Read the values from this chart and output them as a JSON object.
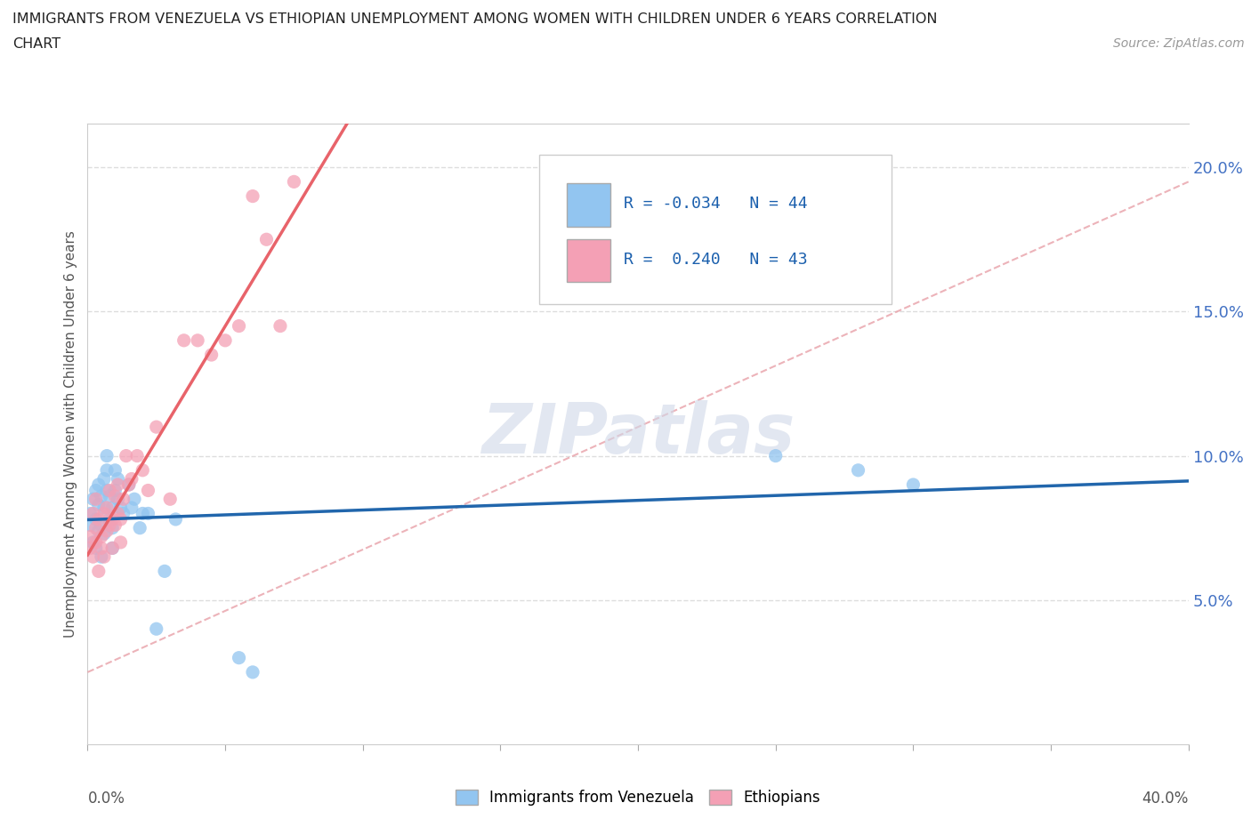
{
  "title_line1": "IMMIGRANTS FROM VENEZUELA VS ETHIOPIAN UNEMPLOYMENT AMONG WOMEN WITH CHILDREN UNDER 6 YEARS CORRELATION",
  "title_line2": "CHART",
  "source": "Source: ZipAtlas.com",
  "ylabel": "Unemployment Among Women with Children Under 6 years",
  "watermark": "ZIPatlas",
  "legend_label1": "Immigrants from Venezuela",
  "legend_label2": "Ethiopians",
  "R1": -0.034,
  "N1": 44,
  "R2": 0.24,
  "N2": 43,
  "color1": "#92C5F0",
  "color2": "#F4A0B5",
  "trendline1_color": "#2166AC",
  "trendline2_color": "#E8636A",
  "trendline_ref_color": "#D0A0A8",
  "venezuela_x": [
    0.001,
    0.001,
    0.002,
    0.002,
    0.003,
    0.003,
    0.003,
    0.004,
    0.004,
    0.004,
    0.005,
    0.005,
    0.005,
    0.006,
    0.006,
    0.006,
    0.007,
    0.007,
    0.007,
    0.008,
    0.008,
    0.009,
    0.009,
    0.009,
    0.01,
    0.01,
    0.011,
    0.011,
    0.012,
    0.013,
    0.015,
    0.016,
    0.017,
    0.019,
    0.02,
    0.022,
    0.025,
    0.028,
    0.032,
    0.055,
    0.06,
    0.25,
    0.28,
    0.3
  ],
  "venezuela_y": [
    0.08,
    0.076,
    0.085,
    0.07,
    0.088,
    0.078,
    0.068,
    0.083,
    0.074,
    0.09,
    0.076,
    0.065,
    0.086,
    0.073,
    0.082,
    0.092,
    0.095,
    0.1,
    0.088,
    0.086,
    0.078,
    0.082,
    0.075,
    0.068,
    0.095,
    0.088,
    0.092,
    0.085,
    0.082,
    0.08,
    0.09,
    0.082,
    0.085,
    0.075,
    0.08,
    0.08,
    0.04,
    0.06,
    0.078,
    0.03,
    0.025,
    0.1,
    0.095,
    0.09
  ],
  "ethiopian_x": [
    0.001,
    0.001,
    0.002,
    0.002,
    0.003,
    0.003,
    0.003,
    0.004,
    0.004,
    0.005,
    0.005,
    0.006,
    0.006,
    0.007,
    0.007,
    0.008,
    0.008,
    0.009,
    0.009,
    0.01,
    0.01,
    0.011,
    0.011,
    0.012,
    0.012,
    0.013,
    0.014,
    0.015,
    0.016,
    0.018,
    0.02,
    0.022,
    0.025,
    0.03,
    0.035,
    0.04,
    0.045,
    0.05,
    0.055,
    0.06,
    0.065,
    0.07,
    0.075
  ],
  "ethiopian_y": [
    0.068,
    0.072,
    0.065,
    0.08,
    0.07,
    0.075,
    0.085,
    0.06,
    0.078,
    0.072,
    0.068,
    0.08,
    0.065,
    0.074,
    0.082,
    0.076,
    0.088,
    0.078,
    0.068,
    0.086,
    0.076,
    0.08,
    0.09,
    0.078,
    0.07,
    0.085,
    0.1,
    0.09,
    0.092,
    0.1,
    0.095,
    0.088,
    0.11,
    0.085,
    0.14,
    0.14,
    0.135,
    0.14,
    0.145,
    0.19,
    0.175,
    0.145,
    0.195
  ],
  "xlim": [
    0.0,
    0.4
  ],
  "ylim": [
    0.0,
    0.215
  ],
  "yticks": [
    0.05,
    0.1,
    0.15,
    0.2
  ],
  "ytick_labels": [
    "5.0%",
    "10.0%",
    "15.0%",
    "20.0%"
  ],
  "xtick_positions": [
    0.0,
    0.05,
    0.1,
    0.15,
    0.2,
    0.25,
    0.3,
    0.35,
    0.4
  ],
  "background_color": "#FFFFFF",
  "grid_color": "#DDDDDD"
}
